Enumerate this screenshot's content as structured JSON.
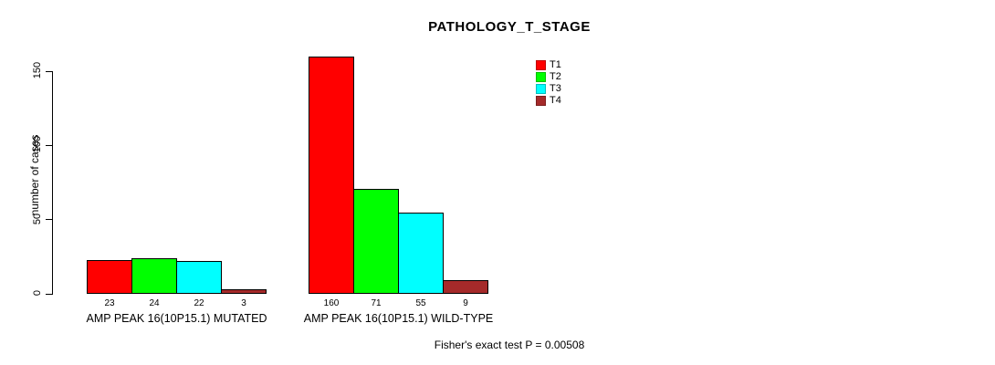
{
  "title": "PATHOLOGY_T_STAGE",
  "footer_note": "Fisher's exact test P = 0.00508",
  "chart_data": {
    "type": "bar",
    "title": "PATHOLOGY_T_STAGE",
    "xlabel": "",
    "ylabel": "number of cases",
    "ylim": [
      0,
      150
    ],
    "yticks": [
      0,
      50,
      100,
      150
    ],
    "grid": false,
    "legend_position": "top-right",
    "categories": [
      "AMP PEAK 16(10P15.1) MUTATED",
      "AMP PEAK 16(10P15.1) WILD-TYPE"
    ],
    "series": [
      {
        "name": "T1",
        "color": "#FF0000",
        "values": [
          23,
          160
        ]
      },
      {
        "name": "T2",
        "color": "#00FF00",
        "values": [
          24,
          71
        ]
      },
      {
        "name": "T3",
        "color": "#00FFFF",
        "values": [
          22,
          55
        ]
      },
      {
        "name": "T4",
        "color": "#A52A2A",
        "values": [
          3,
          9
        ]
      }
    ],
    "bar_value_labels": [
      [
        23,
        24,
        22,
        3
      ],
      [
        160,
        71,
        55,
        9
      ]
    ],
    "annotation": "Fisher's exact test P = 0.00508"
  },
  "colors": {
    "background": "#FFFFFF",
    "axis": "#000000",
    "bar_border": "#000000",
    "text": "#000000"
  }
}
